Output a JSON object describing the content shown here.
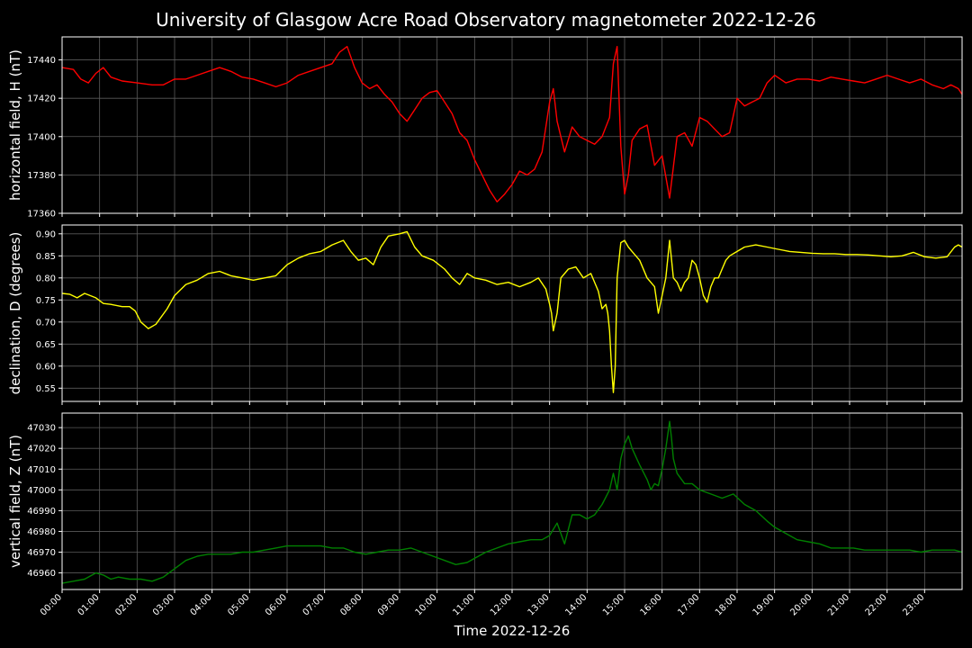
{
  "chart_data": {
    "title": "University of Glasgow Acre Road Observatory magnetometer 2022-12-26",
    "xlabel": "Time 2022-12-26",
    "x_ticks": [
      "00:00",
      "01:00",
      "02:00",
      "03:00",
      "04:00",
      "05:00",
      "06:00",
      "07:00",
      "08:00",
      "09:00",
      "10:00",
      "11:00",
      "12:00",
      "13:00",
      "14:00",
      "15:00",
      "16:00",
      "17:00",
      "18:00",
      "19:00",
      "20:00",
      "21:00",
      "22:00",
      "23:00"
    ],
    "x_range_hours": [
      0,
      24
    ],
    "grid": true,
    "panels": [
      {
        "type": "line",
        "ylabel": "horizontal field, H (nT)",
        "color": "#ff0000",
        "ylim": [
          17360,
          17452
        ],
        "yticks": [
          17360,
          17380,
          17400,
          17420,
          17440
        ],
        "ytick_labels": [
          "17360",
          "17380",
          "17400",
          "17420",
          "17440"
        ],
        "series": [
          {
            "x": [
              0,
              0.3,
              0.5,
              0.7,
              0.9,
              1.1,
              1.3,
              1.6,
              2.0,
              2.4,
              2.7,
              3.0,
              3.3,
              3.6,
              3.9,
              4.2,
              4.5,
              4.8,
              5.1,
              5.4,
              5.7,
              6.0,
              6.3,
              6.6,
              6.9,
              7.2,
              7.4,
              7.6,
              7.8,
              8.0,
              8.2,
              8.4,
              8.6,
              8.8,
              9.0,
              9.2,
              9.4,
              9.6,
              9.8,
              10.0,
              10.2,
              10.4,
              10.6,
              10.8,
              11.0,
              11.2,
              11.4,
              11.6,
              11.8,
              12.0,
              12.2,
              12.4,
              12.6,
              12.8,
              13.0,
              13.1,
              13.2,
              13.4,
              13.6,
              13.8,
              14.0,
              14.2,
              14.4,
              14.6,
              14.7,
              14.8,
              14.9,
              15.0,
              15.1,
              15.2,
              15.4,
              15.6,
              15.8,
              16.0,
              16.2,
              16.4,
              16.6,
              16.8,
              17.0,
              17.2,
              17.4,
              17.6,
              17.8,
              18.0,
              18.2,
              18.4,
              18.6,
              18.8,
              19.0,
              19.3,
              19.6,
              19.9,
              20.2,
              20.5,
              20.8,
              21.1,
              21.4,
              21.7,
              22.0,
              22.3,
              22.6,
              22.9,
              23.2,
              23.5,
              23.7,
              23.9,
              24.0
            ],
            "y": [
              17436,
              17435,
              17430,
              17428,
              17433,
              17436,
              17431,
              17429,
              17428,
              17427,
              17427,
              17430,
              17430,
              17432,
              17434,
              17436,
              17434,
              17431,
              17430,
              17428,
              17426,
              17428,
              17432,
              17434,
              17436,
              17438,
              17444,
              17447,
              17436,
              17428,
              17425,
              17427,
              17422,
              17418,
              17412,
              17408,
              17414,
              17420,
              17423,
              17424,
              17418,
              17412,
              17402,
              17398,
              17388,
              17380,
              17372,
              17366,
              17370,
              17375,
              17382,
              17380,
              17383,
              17392,
              17418,
              17425,
              17408,
              17392,
              17405,
              17400,
              17398,
              17396,
              17400,
              17410,
              17438,
              17447,
              17395,
              17370,
              17380,
              17398,
              17404,
              17406,
              17385,
              17390,
              17368,
              17400,
              17402,
              17395,
              17410,
              17408,
              17404,
              17400,
              17402,
              17420,
              17416,
              17418,
              17420,
              17428,
              17432,
              17428,
              17430,
              17430,
              17429,
              17431,
              17430,
              17429,
              17428,
              17430,
              17432,
              17430,
              17428,
              17430,
              17427,
              17425,
              17427,
              17425,
              17422
            ]
          }
        ]
      },
      {
        "type": "line",
        "ylabel": "declination, D (degrees)",
        "color": "#ffff00",
        "ylim": [
          0.52,
          0.92
        ],
        "yticks": [
          0.55,
          0.6,
          0.65,
          0.7,
          0.75,
          0.8,
          0.85,
          0.9
        ],
        "ytick_labels": [
          "0.55",
          "0.60",
          "0.65",
          "0.70",
          "0.75",
          "0.80",
          "0.85",
          "0.90"
        ],
        "series": [
          {
            "x": [
              0,
              0.2,
              0.4,
              0.6,
              0.9,
              1.1,
              1.3,
              1.6,
              1.8,
              1.95,
              2.1,
              2.3,
              2.5,
              2.8,
              3.0,
              3.3,
              3.6,
              3.9,
              4.2,
              4.5,
              4.8,
              5.1,
              5.4,
              5.7,
              6.0,
              6.3,
              6.6,
              6.9,
              7.2,
              7.5,
              7.7,
              7.9,
              8.1,
              8.3,
              8.5,
              8.7,
              9.0,
              9.2,
              9.4,
              9.6,
              9.9,
              10.2,
              10.4,
              10.6,
              10.8,
              11.0,
              11.3,
              11.6,
              11.9,
              12.2,
              12.5,
              12.7,
              12.9,
              13.0,
              13.05,
              13.1,
              13.2,
              13.3,
              13.5,
              13.7,
              13.9,
              14.1,
              14.3,
              14.4,
              14.5,
              14.55,
              14.6,
              14.65,
              14.7,
              14.75,
              14.8,
              14.9,
              15.0,
              15.1,
              15.2,
              15.4,
              15.6,
              15.8,
              15.9,
              16.0,
              16.1,
              16.2,
              16.3,
              16.4,
              16.5,
              16.6,
              16.7,
              16.8,
              16.9,
              17.0,
              17.1,
              17.2,
              17.3,
              17.4,
              17.5,
              17.6,
              17.7,
              17.8,
              18.0,
              18.2,
              18.5,
              18.8,
              19.1,
              19.4,
              19.7,
              20.0,
              20.3,
              20.6,
              20.9,
              21.2,
              21.5,
              21.8,
              22.1,
              22.4,
              22.7,
              23.0,
              23.3,
              23.6,
              23.8,
              23.9,
              24.0
            ],
            "y": [
              0.765,
              0.763,
              0.755,
              0.765,
              0.755,
              0.742,
              0.74,
              0.735,
              0.735,
              0.725,
              0.7,
              0.685,
              0.695,
              0.73,
              0.76,
              0.785,
              0.795,
              0.81,
              0.815,
              0.805,
              0.8,
              0.795,
              0.8,
              0.805,
              0.83,
              0.845,
              0.855,
              0.86,
              0.875,
              0.885,
              0.86,
              0.84,
              0.845,
              0.83,
              0.87,
              0.895,
              0.9,
              0.905,
              0.87,
              0.85,
              0.84,
              0.82,
              0.8,
              0.785,
              0.81,
              0.8,
              0.795,
              0.785,
              0.79,
              0.78,
              0.79,
              0.8,
              0.775,
              0.74,
              0.72,
              0.68,
              0.72,
              0.8,
              0.82,
              0.825,
              0.8,
              0.81,
              0.77,
              0.73,
              0.74,
              0.72,
              0.68,
              0.6,
              0.54,
              0.6,
              0.8,
              0.88,
              0.885,
              0.87,
              0.86,
              0.84,
              0.8,
              0.78,
              0.72,
              0.76,
              0.8,
              0.885,
              0.8,
              0.79,
              0.77,
              0.79,
              0.8,
              0.84,
              0.83,
              0.8,
              0.76,
              0.745,
              0.78,
              0.8,
              0.8,
              0.82,
              0.84,
              0.85,
              0.86,
              0.87,
              0.875,
              0.87,
              0.865,
              0.86,
              0.858,
              0.856,
              0.855,
              0.855,
              0.853,
              0.853,
              0.852,
              0.85,
              0.848,
              0.85,
              0.858,
              0.848,
              0.845,
              0.848,
              0.87,
              0.875,
              0.87
            ]
          }
        ]
      },
      {
        "type": "line",
        "ylabel": "vertical field, Z (nT)",
        "color": "#008000",
        "ylim": [
          46952,
          47037
        ],
        "yticks": [
          46960,
          46970,
          46980,
          46990,
          47000,
          47010,
          47020,
          47030
        ],
        "ytick_labels": [
          "46960",
          "46970",
          "46980",
          "46990",
          "47000",
          "47010",
          "47020",
          "47030"
        ],
        "series": [
          {
            "x": [
              0,
              0.3,
              0.6,
              0.9,
              1.1,
              1.3,
              1.5,
              1.8,
              2.1,
              2.4,
              2.7,
              3.0,
              3.3,
              3.6,
              3.9,
              4.2,
              4.5,
              4.8,
              5.1,
              5.4,
              5.7,
              6.0,
              6.3,
              6.6,
              6.9,
              7.2,
              7.5,
              7.8,
              8.1,
              8.4,
              8.7,
              9.0,
              9.3,
              9.6,
              9.9,
              10.2,
              10.5,
              10.8,
              11.0,
              11.3,
              11.6,
              11.9,
              12.2,
              12.5,
              12.8,
              13.0,
              13.2,
              13.4,
              13.6,
              13.8,
              14.0,
              14.2,
              14.4,
              14.6,
              14.7,
              14.8,
              14.9,
              15.0,
              15.1,
              15.2,
              15.4,
              15.6,
              15.7,
              15.8,
              15.9,
              16.0,
              16.1,
              16.2,
              16.25,
              16.3,
              16.4,
              16.6,
              16.8,
              17.0,
              17.3,
              17.6,
              17.9,
              18.2,
              18.5,
              18.8,
              19.0,
              19.3,
              19.6,
              19.9,
              20.2,
              20.5,
              20.8,
              21.1,
              21.4,
              21.7,
              22.0,
              22.3,
              22.6,
              22.9,
              23.2,
              23.5,
              23.8,
              24.0
            ],
            "y": [
              46955,
              46956,
              46957,
              46960,
              46959,
              46957,
              46958,
              46957,
              46957,
              46956,
              46958,
              46962,
              46966,
              46968,
              46969,
              46969,
              46969,
              46970,
              46970,
              46971,
              46972,
              46973,
              46973,
              46973,
              46973,
              46972,
              46972,
              46970,
              46969,
              46970,
              46971,
              46971,
              46972,
              46970,
              46968,
              46966,
              46964,
              46965,
              46967,
              46970,
              46972,
              46974,
              46975,
              46976,
              46976,
              46978,
              46984,
              46974,
              46988,
              46988,
              46986,
              46988,
              46993,
              47000,
              47008,
              47000,
              47015,
              47022,
              47026,
              47020,
              47012,
              47005,
              47000,
              47003,
              47002,
              47010,
              47020,
              47033,
              47025,
              47015,
              47008,
              47003,
              47003,
              47000,
              46998,
              46996,
              46998,
              46993,
              46990,
              46985,
              46982,
              46979,
              46976,
              46975,
              46974,
              46972,
              46972,
              46972,
              46971,
              46971,
              46971,
              46971,
              46971,
              46970,
              46971,
              46971,
              46971,
              46970
            ]
          }
        ]
      }
    ]
  }
}
